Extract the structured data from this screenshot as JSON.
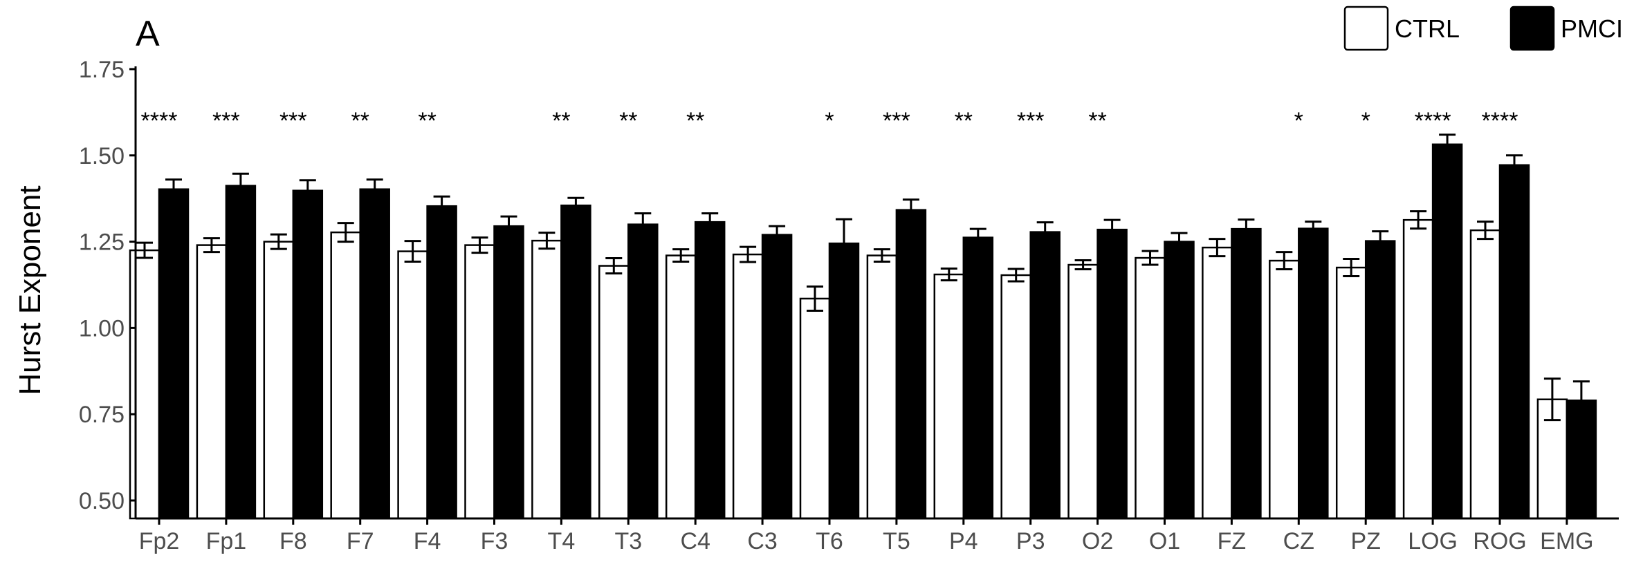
{
  "chart_data": {
    "type": "bar",
    "panel_label": "A",
    "ylabel": "Hurst Exponent",
    "xlabel": "",
    "ylim": [
      0.45,
      1.77
    ],
    "yticks": [
      "0.50",
      "0.75",
      "1.00",
      "1.25",
      "1.50",
      "1.75"
    ],
    "grid": false,
    "legend_position": "top-right",
    "categories": [
      "Fp2",
      "Fp1",
      "F8",
      "F7",
      "F4",
      "F3",
      "T4",
      "T3",
      "C4",
      "C3",
      "T6",
      "T5",
      "P4",
      "P3",
      "O2",
      "O1",
      "FZ",
      "CZ",
      "PZ",
      "LOG",
      "ROG",
      "EMG"
    ],
    "significance": [
      "****",
      "***",
      "***",
      "**",
      "**",
      "",
      "**",
      "**",
      "**",
      "",
      "*",
      "***",
      "**",
      "***",
      "**",
      "",
      "",
      "*",
      "*",
      "****",
      "****",
      ""
    ],
    "series": [
      {
        "name": "CTRL",
        "fill": "#ffffff",
        "values": [
          1.225,
          1.24,
          1.25,
          1.277,
          1.222,
          1.24,
          1.253,
          1.18,
          1.21,
          1.213,
          1.085,
          1.21,
          1.155,
          1.153,
          1.183,
          1.203,
          1.233,
          1.195,
          1.175,
          1.313,
          1.283,
          0.793
        ],
        "errors": [
          0.022,
          0.02,
          0.021,
          0.027,
          0.03,
          0.022,
          0.023,
          0.022,
          0.018,
          0.022,
          0.035,
          0.018,
          0.017,
          0.018,
          0.013,
          0.02,
          0.025,
          0.025,
          0.025,
          0.025,
          0.025,
          0.06
        ]
      },
      {
        "name": "PMCI",
        "fill": "#000000",
        "values": [
          1.402,
          1.412,
          1.398,
          1.402,
          1.353,
          1.295,
          1.355,
          1.3,
          1.307,
          1.27,
          1.245,
          1.342,
          1.262,
          1.278,
          1.285,
          1.25,
          1.287,
          1.288,
          1.252,
          1.532,
          1.472,
          0.79
        ],
        "errors": [
          0.028,
          0.035,
          0.03,
          0.028,
          0.028,
          0.028,
          0.022,
          0.032,
          0.025,
          0.025,
          0.07,
          0.03,
          0.025,
          0.028,
          0.028,
          0.025,
          0.027,
          0.02,
          0.028,
          0.028,
          0.028,
          0.055
        ]
      }
    ]
  }
}
